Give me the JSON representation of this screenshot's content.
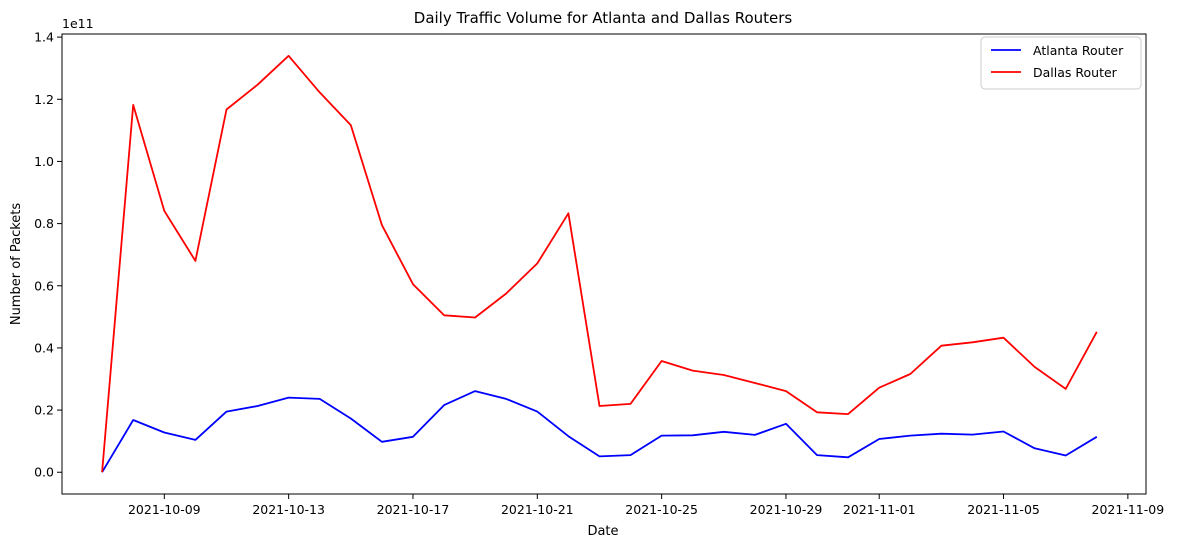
{
  "chart_data": {
    "type": "line",
    "title": "Daily Traffic Volume for Atlanta and Dallas Routers",
    "xlabel": "Date",
    "ylabel": "Number of Packets",
    "y_offset_text": "1e11",
    "y_scale": 100000000000,
    "ylim": [
      -0.07,
      1.41
    ],
    "xlim": [
      "2021-10-05T17:00",
      "2021-11-09T14:00"
    ],
    "grid": false,
    "legend_position": "top-right",
    "x_ticks": [
      {
        "date": "2021-10-09",
        "label": "2021-10-09"
      },
      {
        "date": "2021-10-13",
        "label": "2021-10-13"
      },
      {
        "date": "2021-10-17",
        "label": "2021-10-17"
      },
      {
        "date": "2021-10-21",
        "label": "2021-10-21"
      },
      {
        "date": "2021-10-25",
        "label": "2021-10-25"
      },
      {
        "date": "2021-10-29",
        "label": "2021-10-29"
      },
      {
        "date": "2021-11-01",
        "label": "2021-11-01"
      },
      {
        "date": "2021-11-05",
        "label": "2021-11-05"
      },
      {
        "date": "2021-11-09",
        "label": "2021-11-09"
      }
    ],
    "y_ticks": [
      {
        "value": 0.0,
        "label": "0.0"
      },
      {
        "value": 0.2,
        "label": "0.2"
      },
      {
        "value": 0.4,
        "label": "0.4"
      },
      {
        "value": 0.6,
        "label": "0.6"
      },
      {
        "value": 0.8,
        "label": "0.8"
      },
      {
        "value": 1.0,
        "label": "1.0"
      },
      {
        "value": 1.2,
        "label": "1.2"
      },
      {
        "value": 1.4,
        "label": "1.4"
      }
    ],
    "x": [
      "2021-10-07",
      "2021-10-08",
      "2021-10-09",
      "2021-10-10",
      "2021-10-11",
      "2021-10-12",
      "2021-10-13",
      "2021-10-14",
      "2021-10-15",
      "2021-10-16",
      "2021-10-17",
      "2021-10-18",
      "2021-10-19",
      "2021-10-20",
      "2021-10-21",
      "2021-10-22",
      "2021-10-23",
      "2021-10-24",
      "2021-10-25",
      "2021-10-26",
      "2021-10-27",
      "2021-10-28",
      "2021-10-29",
      "2021-10-30",
      "2021-10-31",
      "2021-11-01",
      "2021-11-02",
      "2021-11-03",
      "2021-11-04",
      "2021-11-05",
      "2021-11-06",
      "2021-11-07",
      "2021-11-08"
    ],
    "series": [
      {
        "name": "Atlanta Router",
        "color": "#0000ff",
        "values": [
          0.0,
          0.168,
          0.128,
          0.104,
          0.195,
          0.213,
          0.24,
          0.236,
          0.173,
          0.098,
          0.114,
          0.216,
          0.261,
          0.236,
          0.195,
          0.116,
          0.051,
          0.055,
          0.118,
          0.119,
          0.13,
          0.12,
          0.156,
          0.055,
          0.048,
          0.107,
          0.118,
          0.124,
          0.121,
          0.131,
          0.077,
          0.054,
          0.114
        ]
      },
      {
        "name": "Dallas Router",
        "color": "#ff0000",
        "values": [
          0.0,
          1.182,
          0.841,
          0.68,
          1.167,
          1.247,
          1.34,
          1.222,
          1.117,
          0.795,
          0.605,
          0.505,
          0.498,
          0.575,
          0.672,
          0.833,
          0.213,
          0.22,
          0.358,
          0.327,
          0.313,
          0.287,
          0.261,
          0.193,
          0.187,
          0.272,
          0.316,
          0.407,
          0.418,
          0.433,
          0.339,
          0.268,
          0.452
        ]
      }
    ]
  }
}
